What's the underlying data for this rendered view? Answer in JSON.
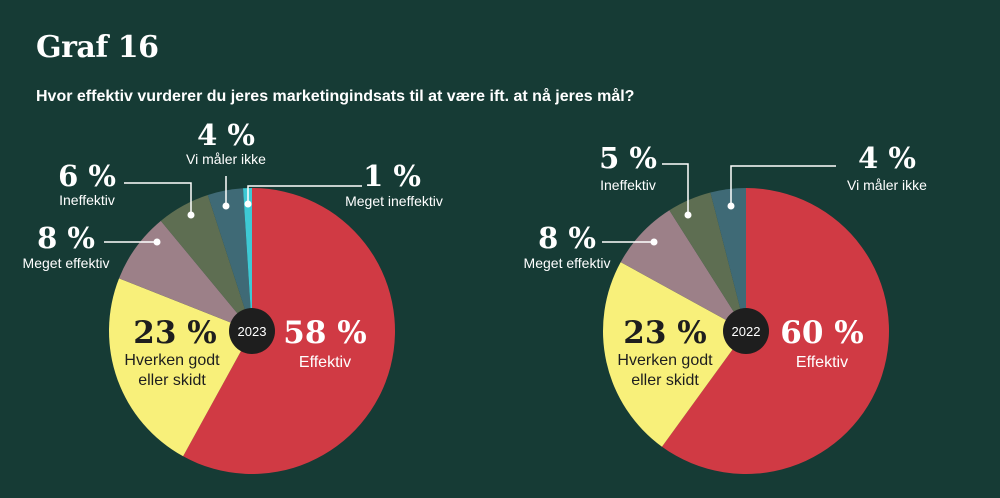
{
  "title": "Graf 16",
  "subtitle": "Hvor effektiv vurderer du jeres marketingindsats til at være ift. at nå jeres mål?",
  "chart_data": [
    {
      "type": "pie",
      "year": "2023",
      "slices": [
        {
          "label": "Effektiv",
          "value": 58,
          "pct": "58 %",
          "color": "#d03a44"
        },
        {
          "label": "Hverken godt eller skidt",
          "value": 23,
          "pct": "23 %",
          "color": "#f8f07a"
        },
        {
          "label": "Meget effektiv",
          "value": 8,
          "pct": "8 %",
          "color": "#9c8088"
        },
        {
          "label": "Ineffektiv",
          "value": 6,
          "pct": "6 %",
          "color": "#5e6e52"
        },
        {
          "label": "Vi måler ikke",
          "value": 4,
          "pct": "4 %",
          "color": "#3f6a76"
        },
        {
          "label": "Meget ineffektiv",
          "value": 1,
          "pct": "1 %",
          "color": "#3ec9d4"
        }
      ]
    },
    {
      "type": "pie",
      "year": "2022",
      "slices": [
        {
          "label": "Effektiv",
          "value": 60,
          "pct": "60 %",
          "color": "#d03a44"
        },
        {
          "label": "Hverken godt eller skidt",
          "value": 23,
          "pct": "23 %",
          "color": "#f8f07a"
        },
        {
          "label": "Meget effektiv",
          "value": 8,
          "pct": "8 %",
          "color": "#9c8088"
        },
        {
          "label": "Ineffektiv",
          "value": 5,
          "pct": "5 %",
          "color": "#5e6e52"
        },
        {
          "label": "Vi måler ikke",
          "value": 4,
          "pct": "4 %",
          "color": "#3f6a76"
        }
      ]
    }
  ],
  "labels_2023": {
    "effektiv": {
      "pct": "58 %",
      "text": "Effektiv"
    },
    "hverken": {
      "pct": "23 %",
      "line1": "Hverken godt",
      "line2": "eller skidt"
    },
    "meget_effektiv": {
      "pct": "8 %",
      "text": "Meget effektiv"
    },
    "ineffektiv": {
      "pct": "6 %",
      "text": "Ineffektiv"
    },
    "vi_maaler_ikke": {
      "pct": "4 %",
      "text": "Vi måler ikke"
    },
    "meget_ineffektiv": {
      "pct": "1 %",
      "text": "Meget ineffektiv"
    }
  },
  "labels_2022": {
    "effektiv": {
      "pct": "60 %",
      "text": "Effektiv"
    },
    "hverken": {
      "pct": "23 %",
      "line1": "Hverken godt",
      "line2": "eller skidt"
    },
    "meget_effektiv": {
      "pct": "8 %",
      "text": "Meget effektiv"
    },
    "ineffektiv": {
      "pct": "5 %",
      "text": "Ineffektiv"
    },
    "vi_maaler_ikke": {
      "pct": "4 %",
      "text": "Vi måler ikke"
    }
  },
  "colors": {
    "background": "#163b35",
    "center": "#1e1e1e",
    "text": "#ffffff"
  }
}
